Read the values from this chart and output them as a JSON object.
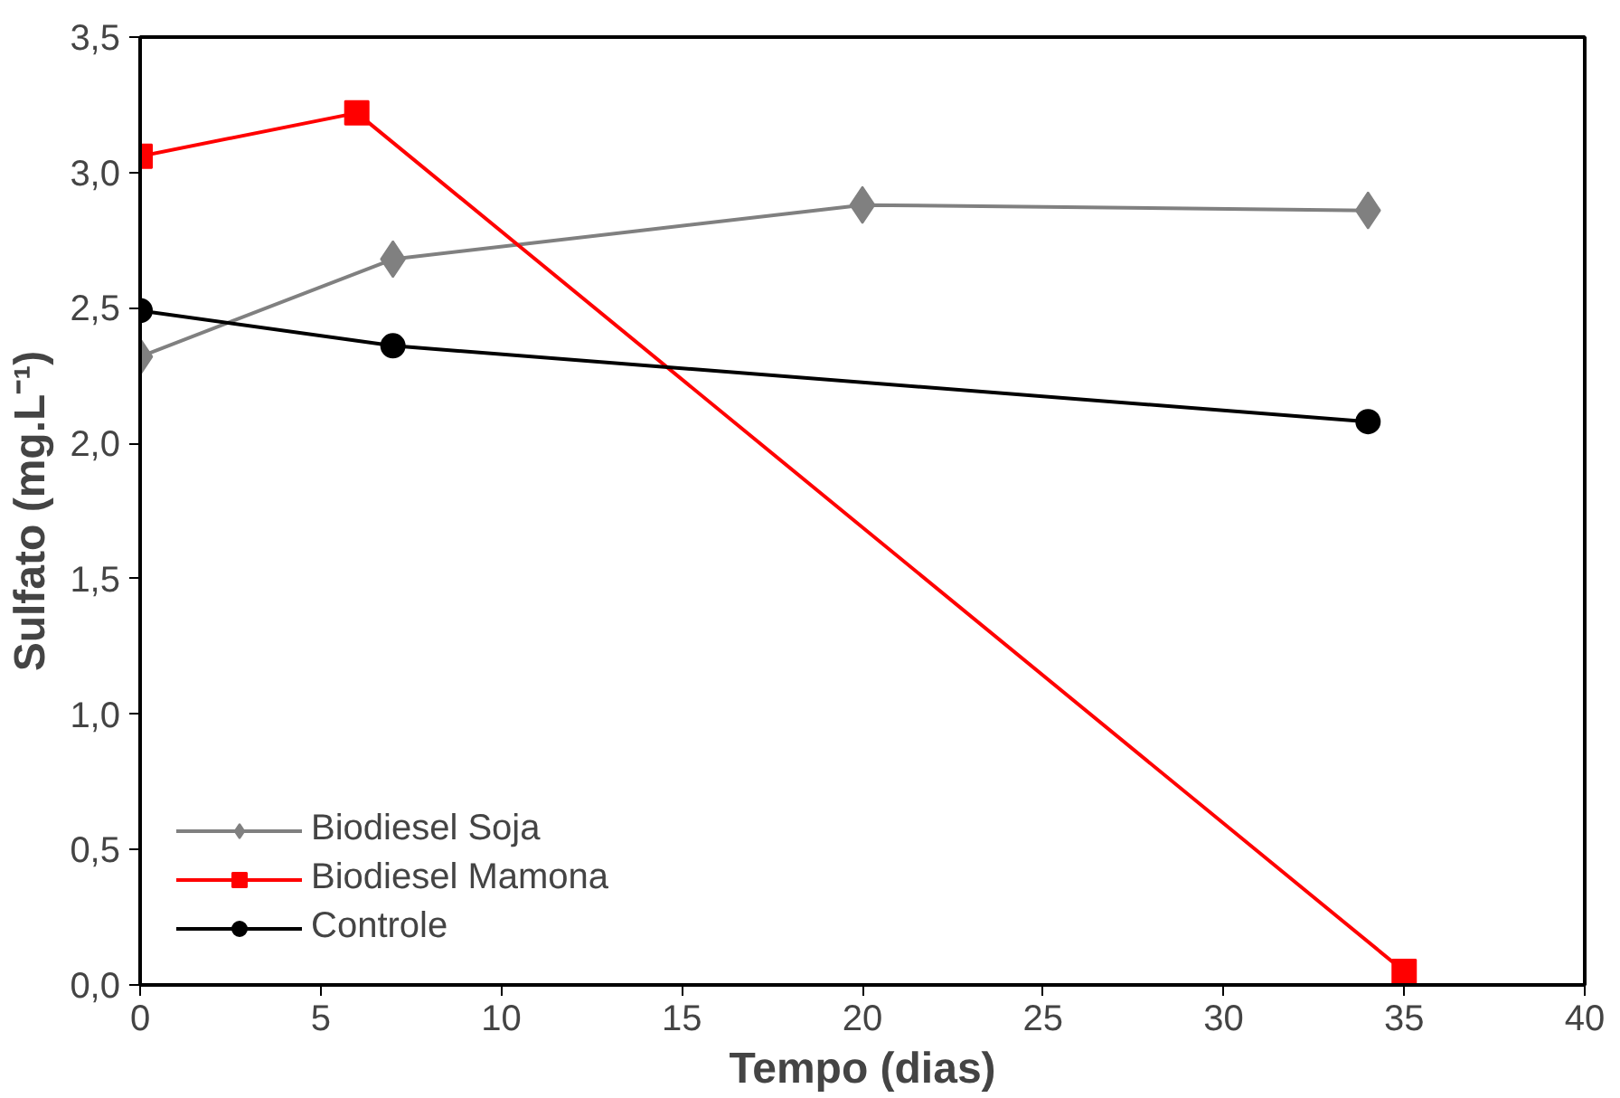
{
  "chart_data": {
    "type": "line",
    "xlabel": "Tempo (dias)",
    "ylabel": "Sulfato (mg.L⁻¹)",
    "xlim": [
      0,
      40
    ],
    "xticks": [
      0,
      5,
      10,
      15,
      20,
      25,
      30,
      35,
      40
    ],
    "ylim": [
      0,
      3.5
    ],
    "yticks": [
      {
        "value": 0,
        "label": "0,0"
      },
      {
        "value": 0.5,
        "label": "0,5"
      },
      {
        "value": 1,
        "label": "1,0"
      },
      {
        "value": 1.5,
        "label": "1,5"
      },
      {
        "value": 2,
        "label": "2,0"
      },
      {
        "value": 2.5,
        "label": "2,5"
      },
      {
        "value": 3,
        "label": "3,0"
      },
      {
        "value": 3.5,
        "label": "3,5"
      }
    ],
    "grid": false,
    "legend": "bottom left",
    "line_style": "solid",
    "series": [
      {
        "name": "Biodiesel Soja",
        "color": "#808080",
        "marker": "diamond",
        "x": [
          0,
          7,
          20,
          34
        ],
        "values": [
          2.32,
          2.68,
          2.88,
          2.86
        ]
      },
      {
        "name": "Biodiesel Mamona",
        "color": "#ff0000",
        "marker": "square",
        "x": [
          0,
          6,
          35
        ],
        "values": [
          3.06,
          3.22,
          0.05
        ]
      },
      {
        "name": "Controle",
        "color": "#000000",
        "marker": "circle",
        "x": [
          0,
          7,
          34
        ],
        "values": [
          2.49,
          2.36,
          2.08
        ]
      }
    ]
  }
}
